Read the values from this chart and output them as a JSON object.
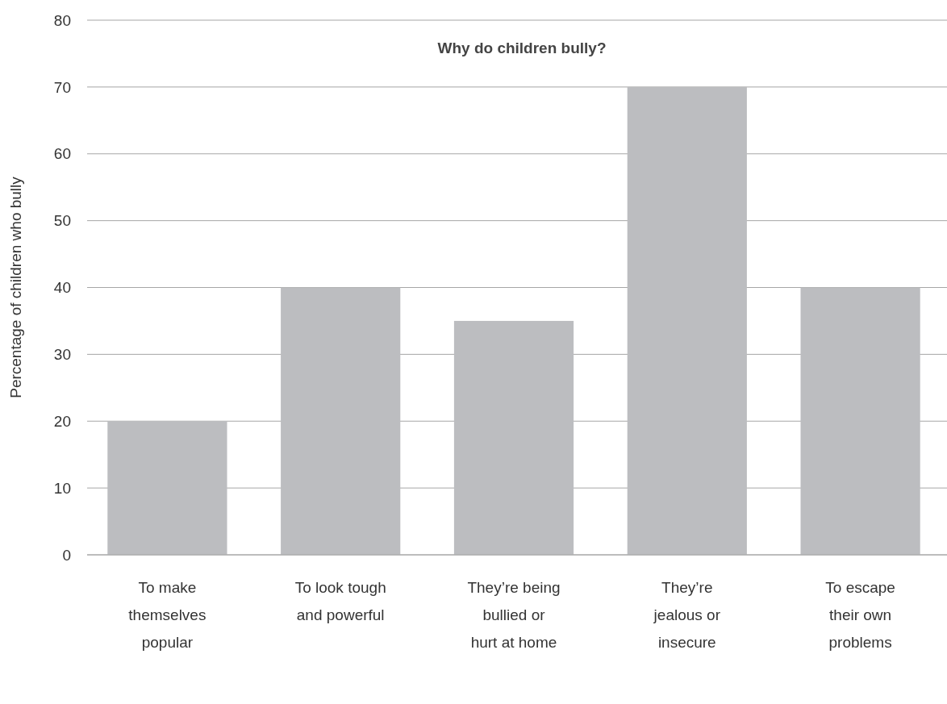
{
  "chart_data": {
    "type": "bar",
    "title": "Why do children bully?",
    "ylabel": "Percentage of children who bully",
    "categories": [
      "To make themselves popular",
      "To look tough and powerful",
      "They’re being bullied or hurt at home",
      "They’re jealous or insecure",
      "To escape their own problems"
    ],
    "values": [
      20,
      40,
      35,
      70,
      40
    ],
    "color": "#bcbdc0",
    "ylim": [
      0,
      80
    ],
    "yticks": [
      0,
      10,
      20,
      30,
      40,
      50,
      60,
      70,
      80
    ],
    "grid": "y"
  }
}
